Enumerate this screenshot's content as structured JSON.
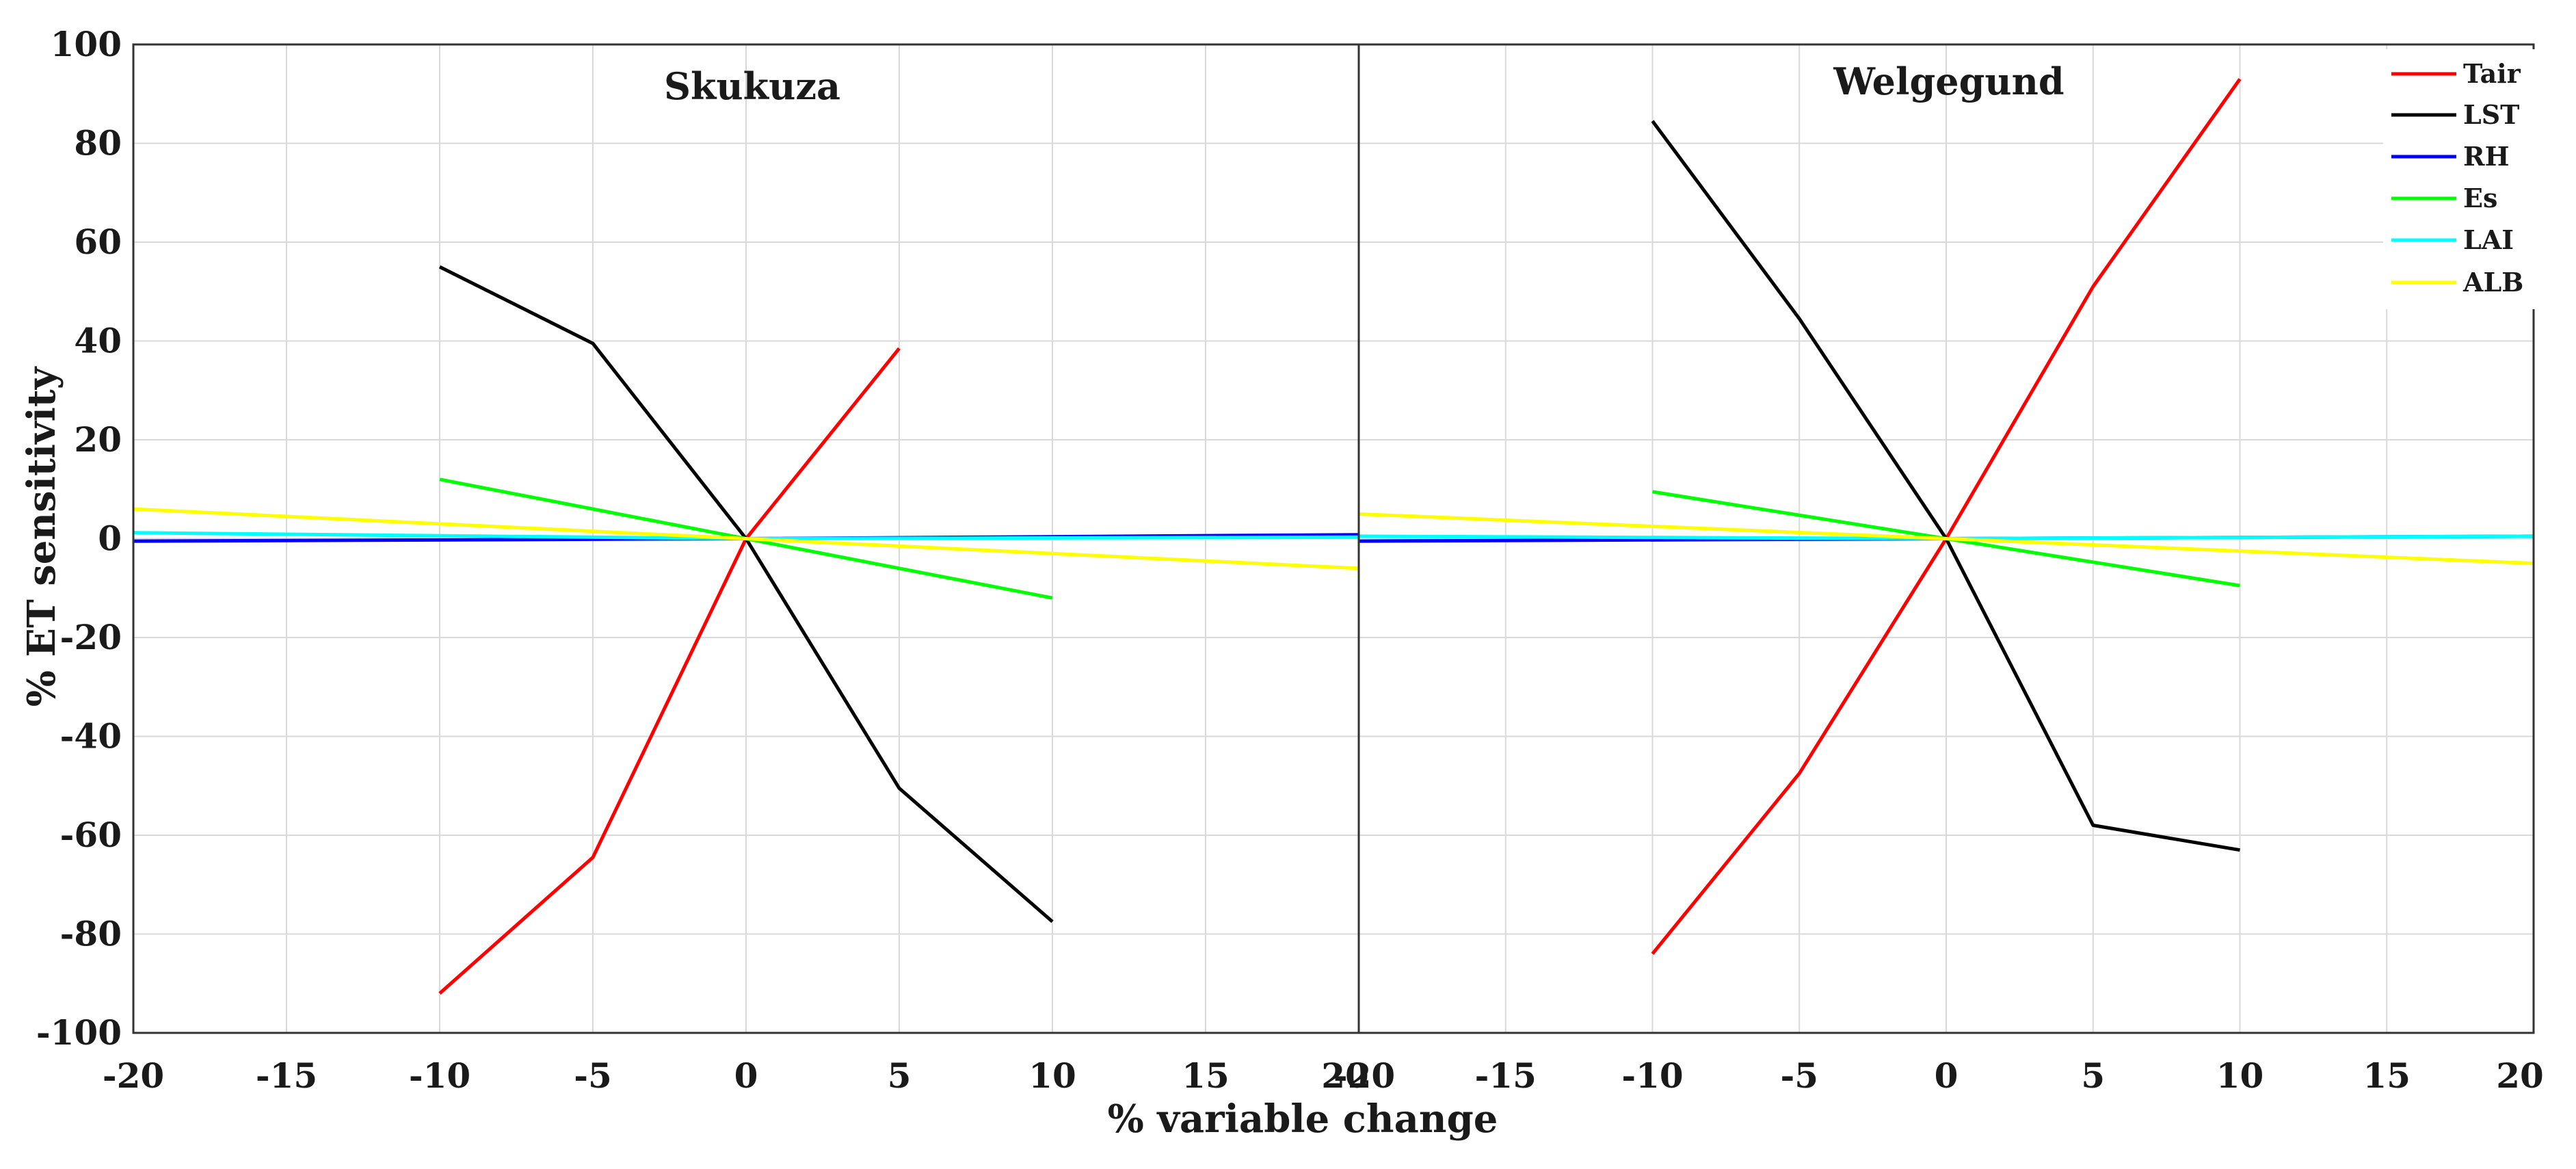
{
  "chart_data": {
    "type": "line",
    "xlabel": "% variable change",
    "ylabel": "% ET sensitivity",
    "xlim": [
      -20,
      20
    ],
    "ylim": [
      -100,
      100
    ],
    "xticks": [
      -20,
      -15,
      -10,
      -5,
      0,
      5,
      10,
      15,
      20
    ],
    "yticks": [
      -100,
      -80,
      -60,
      -40,
      -20,
      0,
      20,
      40,
      60,
      80,
      100
    ],
    "xtick_labels_left": [
      "-20",
      "-15",
      "-10",
      "-5",
      "0",
      "5",
      "10",
      "15",
      "20"
    ],
    "xtick_labels_right": [
      "-20",
      "-15",
      "-10",
      "-5",
      "0",
      "5",
      "10",
      "15",
      "20"
    ],
    "ytick_labels": [
      "-100",
      "-80",
      "-60",
      "-40",
      "-20",
      "0",
      "20",
      "40",
      "60",
      "80",
      "100"
    ],
    "grid": true,
    "legend": {
      "position": "top-right",
      "entries": [
        {
          "name": "Tair",
          "color": "#ff0000"
        },
        {
          "name": "LST",
          "color": "#000000"
        },
        {
          "name": "RH",
          "color": "#0000ff"
        },
        {
          "name": "Es",
          "color": "#00ff00"
        },
        {
          "name": "LAI",
          "color": "#00ffff"
        },
        {
          "name": "ALB",
          "color": "#ffff00"
        }
      ]
    },
    "panels": [
      {
        "title": "Skukuza",
        "series": [
          {
            "name": "Tair",
            "color": "#ff0000",
            "x": [
              -10,
              -5,
              0,
              5
            ],
            "y": [
              -92,
              -64.5,
              0,
              38.5
            ]
          },
          {
            "name": "LST",
            "color": "#000000",
            "x": [
              -10,
              -5,
              0,
              5,
              10
            ],
            "y": [
              55,
              39.5,
              0,
              -50.5,
              -77.5
            ]
          },
          {
            "name": "RH",
            "color": "#0000ff",
            "x": [
              -20,
              0,
              20
            ],
            "y": [
              -0.5,
              0,
              0.8
            ]
          },
          {
            "name": "Es",
            "color": "#00ff00",
            "x": [
              -10,
              0,
              10
            ],
            "y": [
              12,
              0,
              -12
            ]
          },
          {
            "name": "LAI",
            "color": "#00ffff",
            "x": [
              -20,
              0,
              20
            ],
            "y": [
              1.2,
              0,
              0.3
            ]
          },
          {
            "name": "ALB",
            "color": "#ffff00",
            "x": [
              -20,
              0,
              20
            ],
            "y": [
              6,
              0,
              -6
            ]
          }
        ]
      },
      {
        "title": "Welgegund",
        "series": [
          {
            "name": "Tair",
            "color": "#ff0000",
            "x": [
              -10,
              -5,
              0,
              5,
              10
            ],
            "y": [
              -84,
              -47.5,
              0,
              51,
              93
            ]
          },
          {
            "name": "LST",
            "color": "#000000",
            "x": [
              -10,
              -5,
              0,
              5,
              10
            ],
            "y": [
              84.5,
              44.5,
              0,
              -58,
              -63
            ]
          },
          {
            "name": "RH",
            "color": "#0000ff",
            "x": [
              -20,
              0,
              20
            ],
            "y": [
              -0.5,
              0,
              0.5
            ]
          },
          {
            "name": "Es",
            "color": "#00ff00",
            "x": [
              -10,
              0,
              10
            ],
            "y": [
              9.5,
              0,
              -9.5
            ]
          },
          {
            "name": "LAI",
            "color": "#00ffff",
            "x": [
              -20,
              0,
              20
            ],
            "y": [
              0.5,
              0,
              0.5
            ]
          },
          {
            "name": "ALB",
            "color": "#ffff00",
            "x": [
              -20,
              0,
              20
            ],
            "y": [
              5,
              0,
              -5
            ]
          }
        ]
      }
    ]
  }
}
